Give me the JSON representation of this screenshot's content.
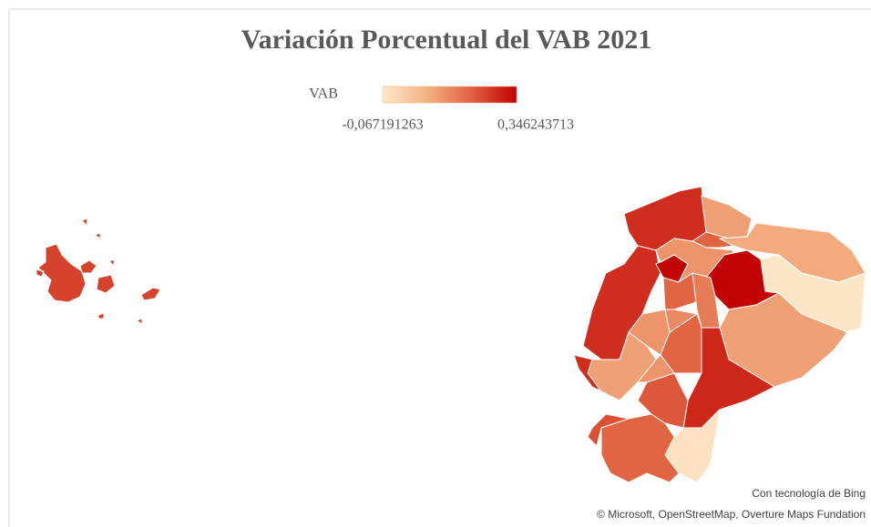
{
  "chart_data": {
    "type": "choropleth",
    "title": "Variación Porcentual del VAB 2021",
    "legend_title": "VAB",
    "color_scale": {
      "min": {
        "value": -0.067191263,
        "label": "-0,067191263"
      },
      "max": {
        "value": 0.346243713,
        "label": "0,346243713"
      },
      "colors": [
        "#fde9c9",
        "#f4b183",
        "#e0603f",
        "#c00000"
      ]
    },
    "values": [
      0.28,
      0.1,
      0.2,
      0.08,
      0.28,
      0.34,
      0.12,
      0.34,
      -0.06,
      0.1,
      0.29,
      -0.05,
      0.2,
      0.23,
      0.22,
      0.1,
      0.28,
      0.12,
      0.2,
      0.16,
      0.2,
      0.14,
      0.12,
      0.25
    ],
    "credits": [
      "Con tecnología de Bing",
      "© Microsoft, OpenStreetMap, Overture Maps Fundation"
    ]
  }
}
